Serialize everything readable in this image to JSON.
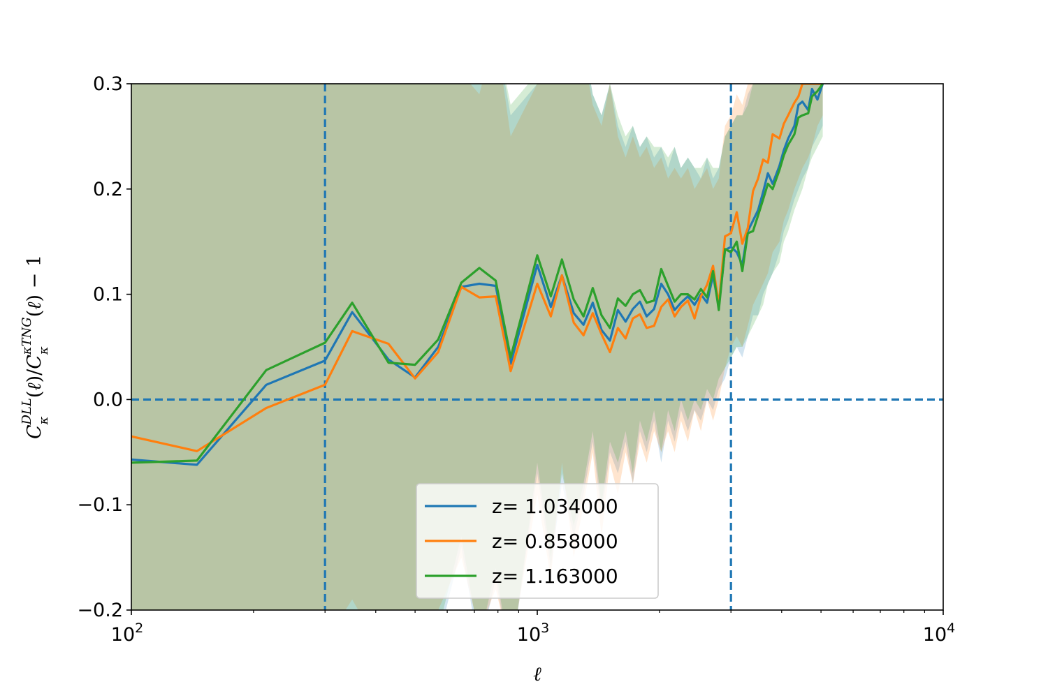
{
  "chart_data": {
    "type": "line",
    "xscale": "log",
    "xlim": [
      100,
      10000
    ],
    "ylim": [
      -0.2,
      0.3
    ],
    "xlabel": "ℓ",
    "ylabel": "C_κ^{DLL}(ℓ)/C_κ^{κTNG}(ℓ) − 1",
    "x_ticks": [
      {
        "value": 100,
        "base": "10",
        "exp": "2"
      },
      {
        "value": 1000,
        "base": "10",
        "exp": "3"
      },
      {
        "value": 10000,
        "base": "10",
        "exp": "4"
      }
    ],
    "y_ticks": [
      {
        "value": -0.2,
        "label": "−0.2"
      },
      {
        "value": -0.1,
        "label": "−0.1"
      },
      {
        "value": 0.0,
        "label": "0.0"
      },
      {
        "value": 0.1,
        "label": "0.1"
      },
      {
        "value": 0.2,
        "label": "0.2"
      },
      {
        "value": 0.3,
        "label": "0.3"
      }
    ],
    "reference_lines": {
      "vertical_x": [
        300,
        3000
      ],
      "horizontal_y": [
        0.0
      ]
    },
    "legend_position": "lower center",
    "grid": false,
    "x": [
      100,
      145,
      215,
      300,
      350,
      430,
      500,
      570,
      650,
      720,
      790,
      860,
      1000,
      1080,
      1150,
      1230,
      1300,
      1370,
      1440,
      1510,
      1580,
      1650,
      1720,
      1790,
      1860,
      1940,
      2020,
      2100,
      2180,
      2260,
      2350,
      2440,
      2530,
      2620,
      2710,
      2800,
      2900,
      3000,
      3100,
      3200,
      3300,
      3400,
      3500,
      3600,
      3700,
      3800,
      3950,
      4050,
      4150,
      4300,
      4400,
      4500,
      4650,
      4750,
      4900,
      5050
    ],
    "series": [
      {
        "name": "z= 1.034000",
        "color": "#1f77b4",
        "values": [
          -0.057,
          -0.062,
          0.014,
          0.037,
          0.083,
          0.038,
          0.021,
          0.05,
          0.107,
          0.11,
          0.108,
          0.034,
          0.128,
          0.088,
          0.118,
          0.082,
          0.071,
          0.092,
          0.066,
          0.056,
          0.085,
          0.074,
          0.086,
          0.093,
          0.079,
          0.086,
          0.11,
          0.1,
          0.085,
          0.092,
          0.098,
          0.09,
          0.1,
          0.092,
          0.118,
          0.088,
          0.142,
          0.145,
          0.14,
          0.128,
          0.16,
          0.17,
          0.18,
          0.197,
          0.215,
          0.205,
          0.222,
          0.237,
          0.248,
          0.26,
          0.28,
          0.283,
          0.275,
          0.295,
          0.285,
          0.3
        ]
      },
      {
        "name": "z= 0.858000",
        "color": "#ff7f0e",
        "values": [
          -0.035,
          -0.049,
          -0.008,
          0.014,
          0.065,
          0.053,
          0.02,
          0.045,
          0.107,
          0.097,
          0.098,
          0.027,
          0.11,
          0.079,
          0.118,
          0.073,
          0.061,
          0.082,
          0.062,
          0.045,
          0.068,
          0.058,
          0.077,
          0.081,
          0.068,
          0.07,
          0.088,
          0.095,
          0.079,
          0.088,
          0.094,
          0.077,
          0.098,
          0.109,
          0.127,
          0.09,
          0.155,
          0.158,
          0.178,
          0.148,
          0.163,
          0.198,
          0.21,
          0.228,
          0.225,
          0.252,
          0.248,
          0.262,
          0.27,
          0.282,
          0.288,
          0.3,
          0.3,
          0.3,
          0.3,
          0.3
        ]
      },
      {
        "name": "z= 1.163000",
        "color": "#2ca02c",
        "values": [
          -0.06,
          -0.058,
          0.028,
          0.054,
          0.092,
          0.035,
          0.033,
          0.057,
          0.111,
          0.125,
          0.113,
          0.04,
          0.137,
          0.098,
          0.133,
          0.095,
          0.079,
          0.106,
          0.08,
          0.068,
          0.096,
          0.089,
          0.1,
          0.104,
          0.092,
          0.094,
          0.124,
          0.108,
          0.093,
          0.1,
          0.1,
          0.095,
          0.105,
          0.097,
          0.122,
          0.085,
          0.143,
          0.14,
          0.15,
          0.122,
          0.158,
          0.16,
          0.175,
          0.19,
          0.205,
          0.2,
          0.218,
          0.232,
          0.242,
          0.252,
          0.268,
          0.27,
          0.272,
          0.288,
          0.293,
          0.3
        ]
      }
    ],
    "bands": [
      {
        "color": "#1f77b4",
        "alpha": 0.2,
        "lower": [
          -0.25,
          -0.25,
          -0.25,
          -0.25,
          -0.25,
          -0.23,
          -0.22,
          -0.23,
          -0.14,
          -0.24,
          -0.17,
          -0.25,
          -0.07,
          -0.16,
          -0.08,
          -0.13,
          -0.09,
          -0.04,
          -0.11,
          -0.05,
          -0.07,
          -0.04,
          -0.08,
          -0.03,
          -0.05,
          -0.02,
          -0.06,
          -0.02,
          -0.04,
          -0.01,
          -0.03,
          -0.01,
          -0.02,
          0.0,
          -0.01,
          0.01,
          0.02,
          0.04,
          0.05,
          0.04,
          0.06,
          0.08,
          0.08,
          0.1,
          0.11,
          0.12,
          0.14,
          0.16,
          0.17,
          0.19,
          0.2,
          0.21,
          0.22,
          0.24,
          0.25,
          0.26
        ],
        "upper": [
          0.35,
          0.33,
          0.35,
          0.35,
          0.34,
          0.31,
          0.34,
          0.3,
          0.31,
          0.3,
          0.35,
          0.27,
          0.3,
          0.32,
          0.35,
          0.31,
          0.34,
          0.29,
          0.27,
          0.3,
          0.26,
          0.24,
          0.26,
          0.24,
          0.25,
          0.23,
          0.24,
          0.22,
          0.24,
          0.22,
          0.23,
          0.22,
          0.21,
          0.23,
          0.21,
          0.22,
          0.25,
          0.26,
          0.27,
          0.27,
          0.29,
          0.3,
          0.32,
          0.33,
          0.35,
          0.36,
          0.37,
          0.38,
          0.39,
          0.4,
          0.41,
          0.42,
          0.43,
          0.44,
          0.45,
          0.46
        ]
      },
      {
        "color": "#ff7f0e",
        "alpha": 0.2,
        "lower": [
          -0.25,
          -0.25,
          -0.25,
          -0.23,
          -0.19,
          -0.25,
          -0.24,
          -0.2,
          -0.15,
          -0.22,
          -0.18,
          -0.24,
          -0.09,
          -0.17,
          -0.06,
          -0.15,
          -0.1,
          -0.05,
          -0.13,
          -0.06,
          -0.09,
          -0.05,
          -0.08,
          -0.04,
          -0.06,
          -0.03,
          -0.05,
          -0.03,
          -0.05,
          -0.02,
          -0.04,
          -0.01,
          -0.03,
          0.0,
          -0.02,
          0.0,
          0.03,
          0.05,
          0.06,
          0.05,
          0.07,
          0.09,
          0.1,
          0.11,
          0.12,
          0.14,
          0.15,
          0.17,
          0.18,
          0.2,
          0.21,
          0.22,
          0.23,
          0.24,
          0.26,
          0.27
        ],
        "upper": [
          0.35,
          0.3,
          0.35,
          0.35,
          0.34,
          0.32,
          0.33,
          0.3,
          0.31,
          0.29,
          0.35,
          0.25,
          0.3,
          0.32,
          0.34,
          0.3,
          0.33,
          0.28,
          0.26,
          0.3,
          0.25,
          0.23,
          0.25,
          0.23,
          0.24,
          0.22,
          0.23,
          0.21,
          0.22,
          0.21,
          0.22,
          0.2,
          0.21,
          0.22,
          0.2,
          0.21,
          0.26,
          0.27,
          0.29,
          0.28,
          0.3,
          0.32,
          0.33,
          0.35,
          0.36,
          0.37,
          0.38,
          0.39,
          0.4,
          0.41,
          0.42,
          0.43,
          0.44,
          0.45,
          0.46,
          0.47
        ]
      },
      {
        "color": "#2ca02c",
        "alpha": 0.2,
        "lower": [
          -0.25,
          -0.25,
          -0.25,
          -0.25,
          -0.22,
          -0.23,
          -0.21,
          -0.22,
          -0.13,
          -0.23,
          -0.16,
          -0.25,
          -0.06,
          -0.15,
          -0.07,
          -0.12,
          -0.08,
          -0.03,
          -0.1,
          -0.04,
          -0.06,
          -0.03,
          -0.07,
          -0.02,
          -0.04,
          -0.01,
          -0.05,
          -0.01,
          -0.03,
          0.0,
          -0.02,
          0.0,
          -0.01,
          0.01,
          0.0,
          0.02,
          0.03,
          0.04,
          0.05,
          0.05,
          0.06,
          0.07,
          0.08,
          0.09,
          0.11,
          0.12,
          0.13,
          0.15,
          0.16,
          0.18,
          0.19,
          0.2,
          0.22,
          0.23,
          0.24,
          0.25
        ],
        "upper": [
          0.35,
          0.34,
          0.35,
          0.35,
          0.34,
          0.31,
          0.34,
          0.3,
          0.32,
          0.3,
          0.35,
          0.28,
          0.31,
          0.33,
          0.35,
          0.31,
          0.34,
          0.29,
          0.27,
          0.3,
          0.27,
          0.25,
          0.26,
          0.24,
          0.25,
          0.24,
          0.24,
          0.23,
          0.24,
          0.22,
          0.23,
          0.22,
          0.22,
          0.23,
          0.22,
          0.22,
          0.25,
          0.26,
          0.27,
          0.27,
          0.28,
          0.3,
          0.31,
          0.32,
          0.34,
          0.35,
          0.36,
          0.37,
          0.38,
          0.39,
          0.4,
          0.41,
          0.42,
          0.43,
          0.44,
          0.45
        ]
      }
    ]
  }
}
